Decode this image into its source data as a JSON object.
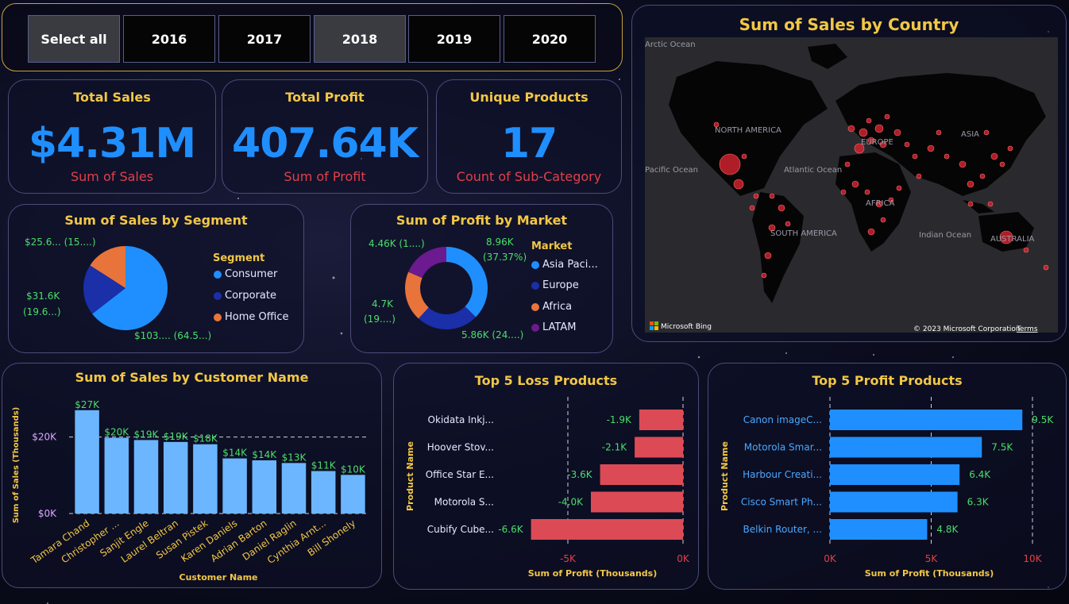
{
  "slicer": {
    "items": [
      {
        "label": "Select all",
        "selected": true
      },
      {
        "label": "2016",
        "selected": false
      },
      {
        "label": "2017",
        "selected": false
      },
      {
        "label": "2018",
        "selected": true
      },
      {
        "label": "2019",
        "selected": false
      },
      {
        "label": "2020",
        "selected": false
      }
    ]
  },
  "kpis": [
    {
      "title": "Total Sales",
      "value": "$4.31M",
      "caption": "Sum of Sales"
    },
    {
      "title": "Total Profit",
      "value": "407.64K",
      "caption": "Sum of Profit"
    },
    {
      "title": "Unique Products",
      "value": "17",
      "caption": "Count of Sub-Category"
    }
  ],
  "map": {
    "title": "Sum of Sales by Country",
    "labels": {
      "north_america": "NORTH AMERICA",
      "europe": "EUROPE",
      "asia": "ASIA",
      "africa": "AFRICA",
      "south_america": "SOUTH AMERICA",
      "australia": "AUSTRALIA",
      "atlantic": "Atlantic Ocean",
      "indian": "Indian Ocean",
      "pacific": "Pacific Ocean",
      "arctic": "Arctic Ocean"
    },
    "bing": "Microsoft Bing",
    "copyright": "© 2023 Microsoft Corporation",
    "terms": "Terms"
  },
  "segment": {
    "title": "Sum of Sales by Segment",
    "legend_title": "Segment",
    "legend": [
      {
        "name": "Consumer",
        "color": "#1f8fff"
      },
      {
        "name": "Corporate",
        "color": "#1a2fa8"
      },
      {
        "name": "Home Office",
        "color": "#e8743b"
      }
    ],
    "labels": {
      "consumer": "$103.... (64.5...)",
      "corporate_1": "$31.6K",
      "corporate_2": "(19.6...)",
      "home": "$25.6... (15....)"
    }
  },
  "market": {
    "title": "Sum of Profit by Market",
    "legend_title": "Market",
    "legend": [
      {
        "name": "Asia Paci...",
        "color": "#1f8fff"
      },
      {
        "name": "Europe",
        "color": "#1a2fa8"
      },
      {
        "name": "Africa",
        "color": "#e8743b"
      },
      {
        "name": "LATAM",
        "color": "#6b1a8f"
      }
    ],
    "labels": {
      "asia_1": "8.96K",
      "asia_2": "(37.37%)",
      "europe": "5.86K (24....)",
      "africa_1": "4.7K",
      "africa_2": "(19....)",
      "latam": "4.46K (1....)"
    }
  },
  "customers": {
    "title": "Sum of Sales by Customer Name",
    "xlabel": "Customer Name",
    "ylabel": "Sum of Sales (Thousands)",
    "ticks": [
      "$20K",
      "$0K"
    ]
  },
  "loss": {
    "title": "Top 5 Loss Products",
    "xlabel": "Sum of Profit (Thousands)",
    "ylabel": "Product Name",
    "ticks": [
      "-5K",
      "0K"
    ]
  },
  "profit": {
    "title": "Top 5 Profit Products",
    "xlabel": "Sum of Profit (Thousands)",
    "ylabel": "Product Name",
    "ticks": [
      "0K",
      "5K",
      "10K"
    ]
  },
  "chart_data": [
    {
      "type": "pie",
      "title": "Sum of Sales by Segment",
      "categories": [
        "Consumer",
        "Corporate",
        "Home Office"
      ],
      "values": [
        64.5,
        19.6,
        15.9
      ],
      "colors": [
        "#1f8fff",
        "#1a2fa8",
        "#e8743b"
      ]
    },
    {
      "type": "pie",
      "title": "Sum of Profit by Market",
      "categories": [
        "Asia Paci...",
        "Europe",
        "Africa",
        "LATAM"
      ],
      "values": [
        8.96,
        5.86,
        4.7,
        4.46
      ],
      "colors": [
        "#1f8fff",
        "#1a2fa8",
        "#e8743b",
        "#6b1a8f"
      ]
    },
    {
      "type": "bar",
      "title": "Sum of Sales by Customer Name",
      "categories": [
        "Tamara Chand",
        "Christopher ...",
        "Sanjit Engle",
        "Laurel Beltran",
        "Susan Pistek",
        "Karen Daniels",
        "Adrian Barton",
        "Daniel Raglin",
        "Cynthia Arnt...",
        "Bill Shonely"
      ],
      "values": [
        27,
        19.8,
        19.2,
        18.7,
        18.1,
        14.4,
        13.9,
        13.2,
        11.1,
        10.1
      ],
      "data_labels": [
        "$27K",
        "$20K",
        "$19K",
        "$19K",
        "$18K",
        "$14K",
        "$14K",
        "$13K",
        "$11K",
        "$10K"
      ],
      "ylim": [
        0,
        28
      ],
      "xlabel": "Customer Name",
      "ylabel": "Sum of Sales (Thousands)"
    },
    {
      "type": "bar",
      "title": "Top 5 Loss Products",
      "orientation": "horizontal",
      "categories": [
        "Okidata Inkj...",
        "Hoover Stov...",
        "Office Star E...",
        "Motorola S...",
        "Cubify Cube..."
      ],
      "values": [
        -1.9,
        -2.1,
        -3.6,
        -4.0,
        -6.6
      ],
      "data_labels": [
        "-1.9K",
        "-2.1K",
        "-3.6K",
        "-4.0K",
        "-6.6K"
      ],
      "xlim": [
        -6.6,
        0
      ],
      "xlabel": "Sum of Profit (Thousands)",
      "ylabel": "Product Name"
    },
    {
      "type": "bar",
      "title": "Top 5 Profit Products",
      "orientation": "horizontal",
      "categories": [
        "Canon imageC...",
        "Motorola Smar...",
        "Harbour Creati...",
        "Cisco Smart Ph...",
        "Belkin Router, ..."
      ],
      "values": [
        9.5,
        7.5,
        6.4,
        6.3,
        4.8
      ],
      "data_labels": [
        "9.5K",
        "7.5K",
        "6.4K",
        "6.3K",
        "4.8K"
      ],
      "xlim": [
        0,
        10
      ],
      "xlabel": "Sum of Profit (Thousands)",
      "ylabel": "Product Name"
    }
  ]
}
